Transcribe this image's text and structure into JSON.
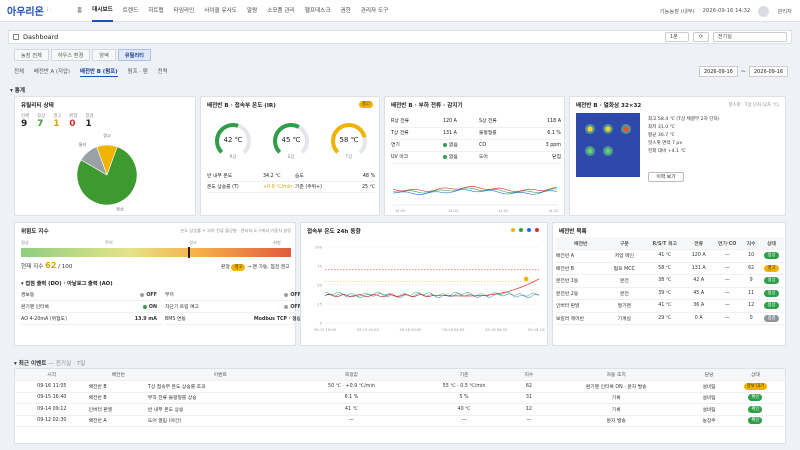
{
  "topnav": {
    "logo": "아우리온",
    "logo_sub": "i :",
    "items": [
      "홈",
      "대시보드",
      "트렌드",
      "히트맵",
      "타임라인",
      "사이클 유사도",
      "알람",
      "소모품 관리",
      "헬프데스크",
      "권한",
      "관리자 도구"
    ],
    "active_index": 1,
    "plant": "기능농장 (내부)",
    "datetime": "2026-09-16 14:32",
    "user": "관리자"
  },
  "dashbar": {
    "title": "Dashboard",
    "interval": "1분",
    "refresh_icon": "⟳",
    "filter": "전기실"
  },
  "tabs1": [
    "농장 전체",
    "하우스 환경",
    "양액",
    "유틸리티"
  ],
  "tabs1_active": 3,
  "tabs2": [
    "전체",
    "배전반 A (저압)",
    "배전반 B (펌프)",
    "펌프 · 팬",
    "전력"
  ],
  "tabs2_active": 2,
  "date_from": "2026-09-16",
  "date_sep": "~",
  "date_to": "2026-09-16",
  "section_stats": "▾ 통계",
  "utility": {
    "title": "유틸리티 상태",
    "counts": [
      {
        "label": "전체",
        "value": "9",
        "color": "#222"
      },
      {
        "label": "정상",
        "value": "7",
        "color": "#3d9a2f"
      },
      {
        "label": "경고",
        "value": "1",
        "color": "#d7a400"
      },
      {
        "label": "위험",
        "value": "0",
        "color": "#d63030"
      },
      {
        "label": "점검",
        "value": "1",
        "color": "#222"
      }
    ],
    "pie": {
      "labels": [
        "통지",
        "경고",
        "정상"
      ],
      "values": [
        1,
        1,
        7
      ],
      "colors": [
        "#9aa0a8",
        "#f0b400",
        "#3d9a2f"
      ]
    }
  },
  "temp_panel": {
    "title": "배전반 B · 접속부 온도 (IR)",
    "badge": "경고",
    "gauges": [
      {
        "value": "42 ℃",
        "label": "R상",
        "fill": 0.42,
        "color": "#2e9e48"
      },
      {
        "value": "45 ℃",
        "label": "S상",
        "fill": 0.45,
        "color": "#2e9e48"
      },
      {
        "value": "58 ℃",
        "label": "T상",
        "fill": 0.58,
        "color": "#f0b400"
      }
    ],
    "rows": [
      {
        "k": "반 내부 온도",
        "v": "34.2 ℃",
        "k2": "습도",
        "v2": "48 %"
      },
      {
        "k": "온도 상승률 (T)",
        "v": "+0.9 ℃/min",
        "k2": "기준 (주위+)",
        "v2": "25 ℃"
      }
    ]
  },
  "load_panel": {
    "title": "배전반 B · 부하 전류 · 감지기",
    "rows": [
      {
        "k": "R상 전류",
        "v": "120 A",
        "k2": "S상 전류",
        "v2": "118 A"
      },
      {
        "k": "T상 전류",
        "v": "131 A",
        "k2": "불평형률",
        "v2": "6.1 %"
      },
      {
        "k": "연기",
        "v": "없음",
        "k2": "CO",
        "v2": "3 ppm"
      },
      {
        "k": "UV 아크",
        "v": "없음",
        "k2": "도어",
        "v2": "닫힘"
      }
    ],
    "x_ticks": [
      "14:00",
      "14:30",
      "14:00",
      "14:32"
    ]
  },
  "heatmap_panel": {
    "title": "배전반 B · 열화상 32×32",
    "sub": "핫스팟 : T상 단자 (2차 ℃)",
    "lines": [
      "최고 58.4 ℃ (T상 체결부 2차 단자)",
      "최저 31.0 ℃",
      "평균 36.7 ℃",
      "핫스팟 면적 7 px",
      "전회 대비 +4.1 ℃"
    ],
    "button": "이력 보기"
  },
  "risk_panel": {
    "title": "위험도 지수",
    "sub": "온도 상승률 + 부하 전류 불균형 · 관리자 도구에서 가중치 설정",
    "scale_labels": [
      "정상",
      "주의",
      "경고",
      "위험"
    ],
    "current_label": "현재 지수",
    "current_value": "62",
    "current_max": "/ 100",
    "grade_label": "판정",
    "grade_badge": "경고",
    "grade_note": "→ 팬 가동, 점검 권고",
    "marker": 0.62
  },
  "io_section": {
    "title": "▾ 접점 출력 (DO) · 아날로그 출력 (AO)",
    "rows": [
      [
        {
          "k": "경보등",
          "dot": "#9aa0a8",
          "v": "OFF"
        },
        {
          "k": "부저",
          "dot": "#9aa0a8",
          "v": "OFF"
        }
      ],
      [
        {
          "k": "환기팬 인터록",
          "dot": "#2e9e48",
          "v": "ON"
        },
        {
          "k": "차단기 트립 예고",
          "dot": "#9aa0a8",
          "v": "OFF"
        }
      ],
      [
        {
          "k": "AO 4-20mA (위험도)",
          "dot": "",
          "v": "13.9 mA"
        },
        {
          "k": "BMS 연동",
          "dot": "",
          "v": "Modbus TCP · 정상"
        }
      ]
    ]
  },
  "trend_panel": {
    "title": "접속부 온도 24h 동향",
    "y_ticks": [
      "100",
      "75",
      "50",
      "25",
      "0"
    ],
    "x_ticks": [
      "09-15 16:00",
      "09-15 20:00",
      "09-16 00:00",
      "09-16 04:00",
      "09-16 08:00",
      "09-16 12:00"
    ],
    "legend_colors": [
      "#f0b400",
      "#2e9e48",
      "#1e6fd8",
      "#d63030"
    ]
  },
  "switch_panel": {
    "title": "배전반 목록",
    "headers": [
      "배전반",
      "구분",
      "R/S/T 최고",
      "전류",
      "연기·CO",
      "지수",
      "상태"
    ],
    "rows": [
      [
        "배전반 A",
        "저압 메인",
        "41 ℃",
        "120 A",
        "—",
        "10",
        "정상",
        "ok"
      ],
      [
        "배전반 B",
        "펌프 MCC",
        "58 ℃",
        "131 A",
        "—",
        "62",
        "경고",
        "warn"
      ],
      [
        "분전반 1동",
        "분전",
        "38 ℃",
        "42 A",
        "—",
        "9",
        "정상",
        "ok"
      ],
      [
        "분전반 2동",
        "분전",
        "39 ℃",
        "45 A",
        "—",
        "11",
        "정상",
        "ok"
      ],
      [
        "인버터 판넬",
        "팔기팬",
        "41 ℃",
        "36 A",
        "—",
        "12",
        "정상",
        "ok"
      ],
      [
        "보일러 제어반",
        "기계실",
        "29 ℃",
        "0 A",
        "—",
        "0",
        "점검",
        "gray"
      ]
    ]
  },
  "events": {
    "title": "▾ 최근 이벤트",
    "sub": "— 전기실 · 7일",
    "headers": [
      "시각",
      "배전반",
      "이벤트",
      "측정값",
      "기준",
      "지수",
      "자동 조치",
      "담당",
      "상태"
    ],
    "rows": [
      [
        "09-16 11:05",
        "배전반 B",
        "T상 접속부 온도 상승률 초과",
        "50 ℃ · +0.9 ℃/min",
        "55 ℃ · 0.5 ℃/min",
        "62",
        "환기팬 인터록 ON · 문자 발송",
        "설비팀",
        "경보 대기",
        "warn"
      ],
      [
        "09-15 16:40",
        "배전반 B",
        "부하 전류 불평형률 상승",
        "6.1 %",
        "5 %",
        "31",
        "기록",
        "설비팀",
        "확인",
        "ok"
      ],
      [
        "09-14 09:12",
        "인버터 판넬",
        "반 내부 온도 상승",
        "41 ℃",
        "40 ℃",
        "12",
        "기록",
        "설비팀",
        "확인",
        "ok"
      ],
      [
        "09-12 02:30",
        "배전반 A",
        "도어 열림 (야간)",
        "—",
        "—",
        "—",
        "문자 발송",
        "농장주",
        "확인",
        "ok"
      ]
    ]
  }
}
